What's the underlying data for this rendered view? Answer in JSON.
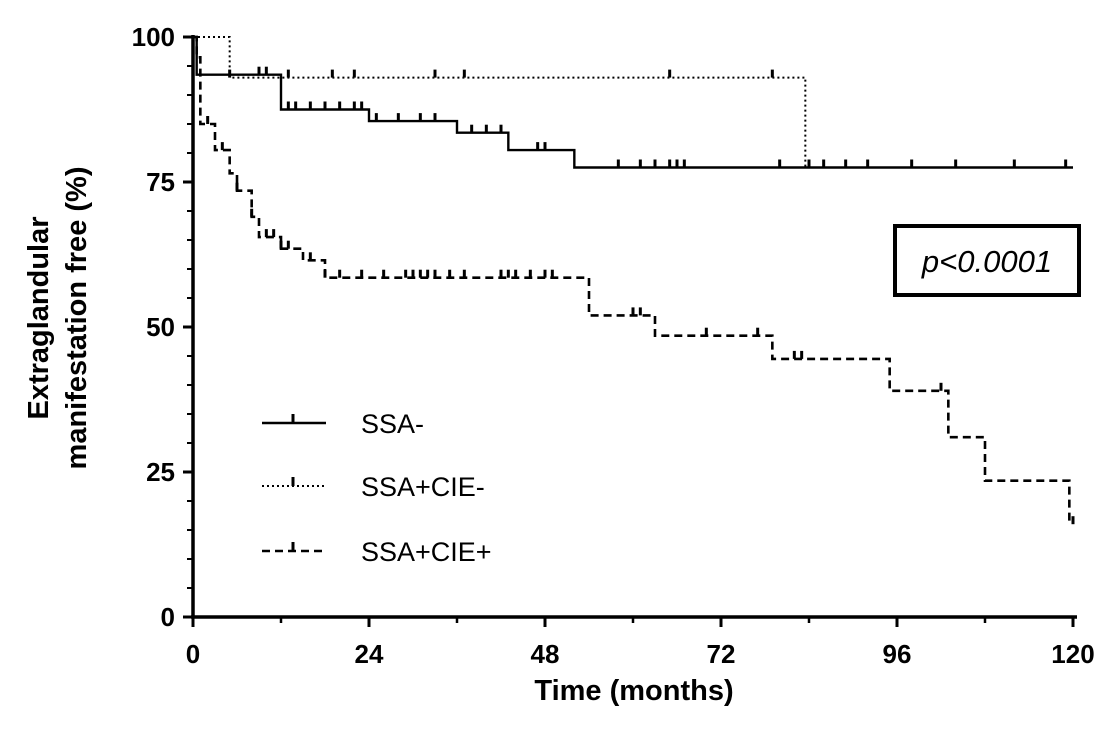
{
  "chart_data": {
    "type": "line",
    "subtype": "kaplan-meier-step",
    "title": "",
    "xlabel": "Time (months)",
    "ylabel_lines": [
      "Extraglandular",
      "manifestation free (%)"
    ],
    "xlim": [
      0,
      120
    ],
    "ylim": [
      0,
      100
    ],
    "xticks": [
      0,
      24,
      48,
      72,
      96,
      120
    ],
    "yticks": [
      0,
      25,
      50,
      75,
      100
    ],
    "grid": false,
    "legend_position": "bottom-left",
    "annotation": "p<0.0001",
    "series": [
      {
        "name": "SSA-",
        "line_style": "solid",
        "color": "#000000",
        "steps": [
          [
            0,
            100
          ],
          [
            0.5,
            93.5
          ],
          [
            12,
            87.5
          ],
          [
            24,
            85.5
          ],
          [
            36,
            83.5
          ],
          [
            43,
            80.5
          ],
          [
            52,
            77.5
          ],
          [
            120,
            77.5
          ]
        ],
        "censored_x": [
          9,
          10,
          13,
          14,
          16,
          18,
          20,
          22,
          23,
          25,
          28,
          31,
          33,
          38,
          40,
          42,
          47,
          48,
          58,
          61,
          63,
          65,
          66,
          67,
          80,
          86,
          92,
          104,
          112,
          119
        ]
      },
      {
        "name": "SSA+CIE-",
        "line_style": "dotted",
        "color": "#000000",
        "steps": [
          [
            0,
            100
          ],
          [
            5,
            93
          ],
          [
            83.5,
            93
          ],
          [
            83.5,
            77.5
          ],
          [
            120,
            77.5
          ]
        ],
        "censored_x": [
          5,
          13,
          19,
          22,
          33,
          37,
          65,
          79,
          84,
          89,
          98
        ]
      },
      {
        "name": "SSA+CIE+",
        "line_style": "dashed",
        "color": "#000000",
        "steps": [
          [
            0,
            100
          ],
          [
            0.5,
            96.5
          ],
          [
            1,
            85
          ],
          [
            3,
            80.5
          ],
          [
            5,
            76.5
          ],
          [
            6,
            73.5
          ],
          [
            8,
            69
          ],
          [
            9,
            65.5
          ],
          [
            12,
            63.5
          ],
          [
            15,
            61.5
          ],
          [
            18,
            58.5
          ],
          [
            54,
            58.5
          ],
          [
            54,
            52
          ],
          [
            63,
            52
          ],
          [
            63,
            48.5
          ],
          [
            79,
            48.5
          ],
          [
            79,
            44.5
          ],
          [
            95,
            44.5
          ],
          [
            95,
            39
          ],
          [
            103,
            39
          ],
          [
            103,
            31
          ],
          [
            108,
            31
          ],
          [
            108,
            23.5
          ],
          [
            119.5,
            23.5
          ],
          [
            119.5,
            16
          ]
        ],
        "censored_x": [
          2,
          4,
          6,
          8,
          10,
          11,
          12,
          13,
          16,
          18,
          20,
          23,
          26,
          29,
          30,
          31,
          32,
          33,
          35,
          37,
          42,
          43,
          44,
          46,
          48,
          49,
          60,
          61,
          70,
          77,
          82,
          83,
          102,
          120
        ]
      }
    ]
  }
}
